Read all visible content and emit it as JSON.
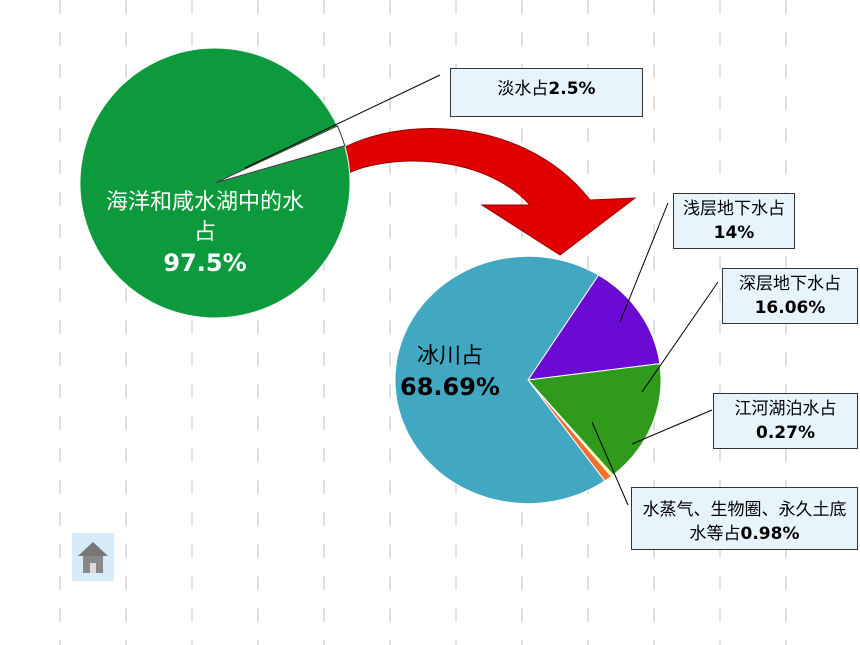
{
  "chart_data": [
    {
      "type": "pie",
      "categories": [
        "海洋和咸水湖中的水占",
        "淡水占"
      ],
      "values": [
        97.5,
        2.5
      ],
      "value_labels": [
        "97.5%",
        "2.5%"
      ],
      "colors": [
        "#0c9a3c",
        "#ffffff"
      ]
    },
    {
      "type": "pie",
      "categories": [
        "浅层地下水占",
        "深层地下水占",
        "江河湖泊水占",
        "水蒸气、生物圈、永久土底水等占",
        "冰川占"
      ],
      "values": [
        14,
        16.06,
        0.27,
        0.98,
        68.69
      ],
      "value_labels": [
        "14%",
        "16.06%",
        "0.27%",
        "0.98%",
        "68.69%"
      ],
      "colors": [
        "#6a0ad2",
        "#2f9a1c",
        "#ffff33",
        "#f07030",
        "#42a8c2"
      ]
    }
  ]
}
